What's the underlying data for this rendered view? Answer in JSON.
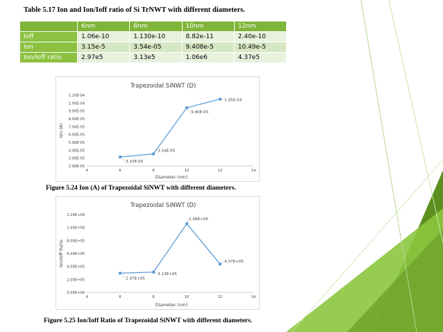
{
  "table": {
    "title": "Table 5.17 Ion and Ion/Ioff ratio of Si TrNWT with different diameters.",
    "columns": [
      "",
      "6nm",
      "8nm",
      "10nm",
      "12nm"
    ],
    "rows": [
      {
        "label": "Ioff",
        "values": [
          "1.06e-10",
          "1.130e-10",
          "8.82e-11",
          "2.40e-10"
        ]
      },
      {
        "label": "Ion",
        "values": [
          "3.15e-5",
          "3.54e-05",
          "9.408e-5",
          "10.49e-5"
        ]
      },
      {
        "label": "Ion/Ioff ratio",
        "values": [
          "2.97e5",
          "3.13e5",
          "1.06e6",
          "4.37e5"
        ]
      }
    ],
    "header_color": "#7fb539",
    "row_label_color": "#8bc13f"
  },
  "figures": {
    "fig1_caption": "Figure 5.24 Ion (A) of Trapezoidal SiNWT with different diameters.",
    "fig2_caption": "Figure 5.25 Ion/Ioff Ratio of Trapezoidal SiNWT with different diameters."
  },
  "chart_data": [
    {
      "type": "line",
      "title": "Trapezoidal SiNWT (D)",
      "xlabel": "Diameter (nm)",
      "ylabel": "Ion (A)",
      "x": [
        6,
        8,
        10,
        12
      ],
      "y": [
        3.15e-05,
        3.54e-05,
        9.4e-05,
        0.000105
      ],
      "data_labels": [
        "3.15E-05",
        "3.54E-05",
        "9.40E-05",
        "1.05E-04"
      ],
      "xlim": [
        4,
        14
      ],
      "xticks": [
        "4",
        "6",
        "8",
        "10",
        "12",
        "14"
      ],
      "ylim": [
        2e-05,
        0.00011
      ],
      "yticks": [
        "2.00E-05",
        "3.00E-05",
        "4.00E-05",
        "5.00E-05",
        "6.00E-05",
        "7.00E-05",
        "8.00E-05",
        "9.00E-05",
        "1.00E-04",
        "1.10E-04"
      ],
      "grid": false,
      "line_color": "#5b9bd5"
    },
    {
      "type": "line",
      "title": "Trapezoidal SiNWT (D)",
      "xlabel": "Diameter (nm)",
      "ylabel": "Ion/Ioff Ratio",
      "x": [
        6,
        8,
        10,
        12
      ],
      "y": [
        297000,
        313000,
        1060000,
        437000
      ],
      "data_labels": [
        "2.97E+05",
        "3.13E+05",
        "1.06E+06",
        "4.37E+05"
      ],
      "xlim": [
        4,
        14
      ],
      "xticks": [
        "4",
        "6",
        "8",
        "10",
        "12",
        "14"
      ],
      "ylim": [
        0,
        1200000
      ],
      "yticks": [
        "0.00E+00",
        "2.00E+05",
        "4.00E+05",
        "6.00E+05",
        "8.00E+05",
        "1.00E+06",
        "1.20E+06"
      ],
      "grid": false,
      "line_color": "#5b9bd5"
    }
  ],
  "theme": {
    "green_light": "#8cc63f",
    "green_dark": "#5c8f1f",
    "accent_line": "#9fce6a"
  }
}
